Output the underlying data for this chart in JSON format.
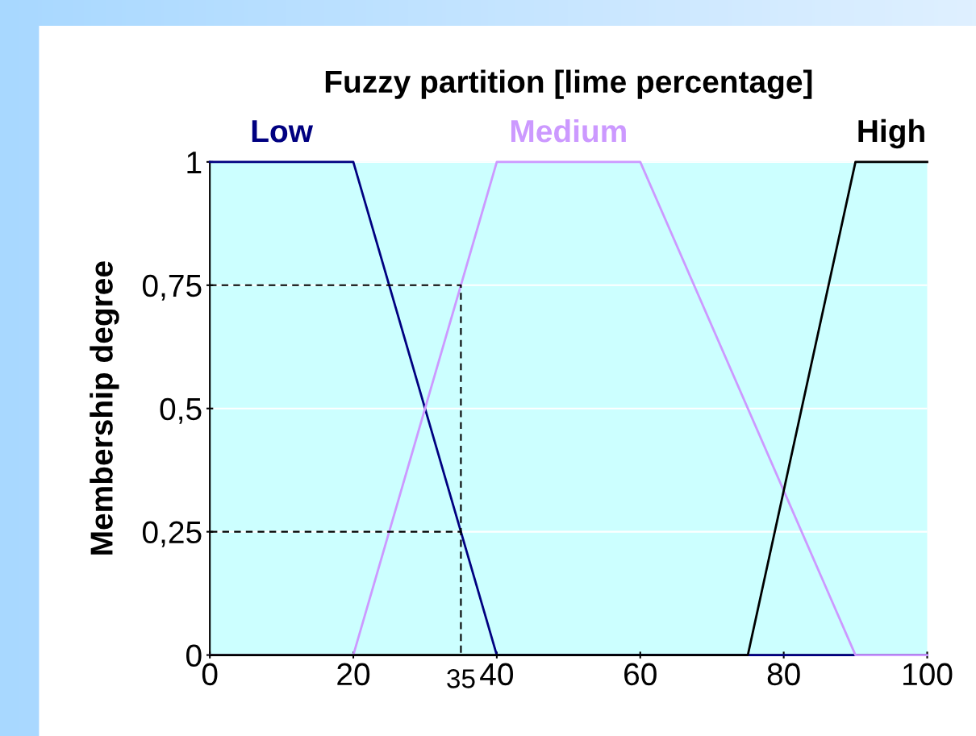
{
  "chart_data": {
    "type": "line",
    "title": "Fuzzy partition [lime percentage]",
    "ylabel": "Membership degree",
    "series": [
      {
        "name": "Low",
        "color": "#000080",
        "x": [
          0,
          20,
          40,
          100
        ],
        "values": [
          1,
          1,
          0,
          0
        ]
      },
      {
        "name": "Medium",
        "color": "#cc99ff",
        "x": [
          0,
          20,
          40,
          60,
          90,
          100
        ],
        "values": [
          0,
          0,
          1,
          1,
          0,
          0
        ]
      },
      {
        "name": "High",
        "color": "#000000",
        "x": [
          0,
          75,
          90,
          100
        ],
        "values": [
          0,
          0,
          1,
          1
        ]
      },
      {
        "color": "#000000",
        "line_style": "dashed",
        "x": [
          0,
          35,
          35,
          35,
          0
        ],
        "values": [
          0.75,
          0.75,
          0,
          0.25,
          0.25
        ]
      }
    ],
    "annotations": [
      {
        "text": "35",
        "x": 35,
        "y": 0
      }
    ],
    "xlim": [
      0,
      100
    ],
    "xticks": [
      0,
      20,
      40,
      60,
      80,
      100
    ],
    "ylim": [
      0,
      1
    ],
    "yticks": [
      0,
      {
        "value": 0.25,
        "label": "0,25"
      },
      {
        "value": 0.5,
        "label": "0,5"
      },
      {
        "value": 0.75,
        "label": "0,75"
      },
      1
    ],
    "grid": "y",
    "legend": false,
    "marker": "none",
    "line_style": "solid"
  }
}
